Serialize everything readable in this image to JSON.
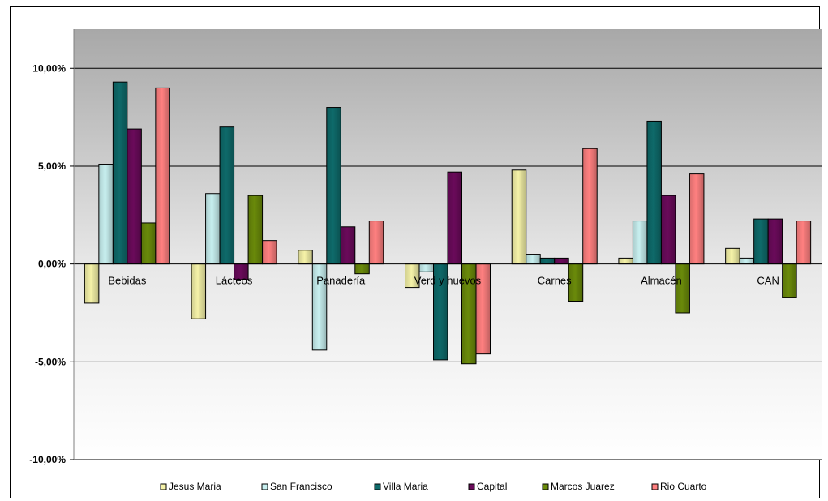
{
  "chart_data": {
    "type": "bar",
    "title": "",
    "xlabel": "",
    "ylabel": "",
    "ylim": [
      -0.1,
      0.12
    ],
    "yticks": [
      {
        "value": 0.1,
        "label": "10,00%"
      },
      {
        "value": 0.05,
        "label": "5,00%"
      },
      {
        "value": 0.0,
        "label": "0,00%"
      },
      {
        "value": -0.05,
        "label": "-5,00%"
      },
      {
        "value": -0.1,
        "label": "-10,00%"
      }
    ],
    "grid": true,
    "legend": "bottom",
    "categories": [
      "Bebidas",
      "Lácteos",
      "Panadería",
      "Verd y huevos",
      "Carnes",
      "Almacén",
      "CAN"
    ],
    "series": [
      {
        "name": "Jesus Maria",
        "color": "#f5f2a8",
        "values": [
          -0.02,
          -0.028,
          0.007,
          -0.012,
          0.048,
          0.003,
          0.008
        ]
      },
      {
        "name": "San Francisco",
        "color": "#c8f0f0",
        "values": [
          0.051,
          0.036,
          -0.044,
          -0.004,
          0.005,
          0.022,
          0.003
        ]
      },
      {
        "name": "Villa Maria",
        "color": "#0e6a6a",
        "values": [
          0.093,
          0.07,
          0.08,
          -0.049,
          0.003,
          0.073,
          0.023
        ]
      },
      {
        "name": "Capital",
        "color": "#6a0a5a",
        "values": [
          0.069,
          -0.008,
          0.019,
          0.047,
          0.003,
          0.035,
          0.023
        ]
      },
      {
        "name": "Marcos Juarez",
        "color": "#6a8a0a",
        "values": [
          0.021,
          0.035,
          -0.005,
          -0.051,
          -0.019,
          -0.025,
          -0.017
        ]
      },
      {
        "name": "Rio Cuarto",
        "color": "#ff8080",
        "values": [
          0.09,
          0.012,
          0.022,
          -0.046,
          0.059,
          0.046,
          0.022
        ]
      }
    ]
  }
}
